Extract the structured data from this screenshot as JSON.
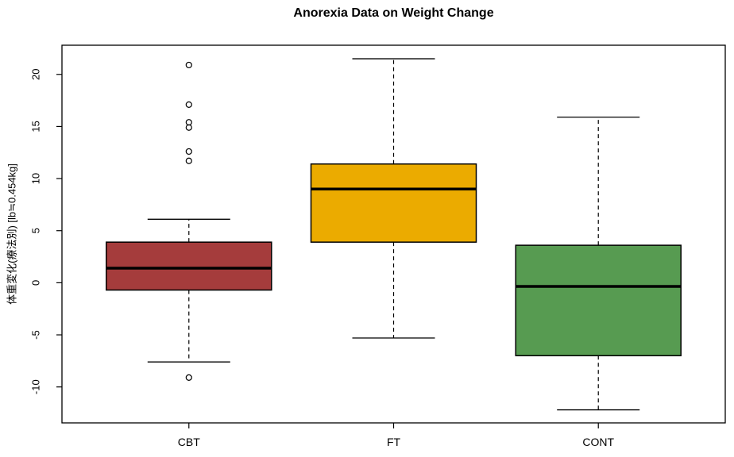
{
  "title": "Anorexia Data on Weight Change",
  "y_axis": {
    "label": "体重変化(療法別) [lb≒0.454kg]",
    "ticks": [
      -10,
      -5,
      0,
      5,
      10,
      15,
      20
    ],
    "range": [
      -13.45,
      22.8
    ]
  },
  "x_axis": {
    "categories": [
      "CBT",
      "FT",
      "CONT"
    ]
  },
  "chart_data": {
    "type": "boxplot",
    "title": "Anorexia Data on Weight Change",
    "ylabel": "体重変化(療法別) [lb≒0.454kg]",
    "ylim": [
      -13.45,
      22.8
    ],
    "y_ticks": [
      -10,
      -5,
      0,
      5,
      10,
      15,
      20
    ],
    "grid": false,
    "categories": [
      "CBT",
      "FT",
      "CONT"
    ],
    "series": [
      {
        "name": "CBT",
        "fill": "#A53C3C",
        "whisker_low": -7.6,
        "q1": -0.7,
        "median": 1.4,
        "q3": 3.9,
        "whisker_high": 6.1,
        "outliers": [
          20.9,
          17.1,
          15.4,
          14.9,
          12.6,
          11.7,
          -9.1
        ]
      },
      {
        "name": "FT",
        "fill": "#EBAB00",
        "whisker_low": -5.3,
        "q1": 3.9,
        "median": 9.0,
        "q3": 11.4,
        "whisker_high": 21.5,
        "outliers": []
      },
      {
        "name": "CONT",
        "fill": "#579B51",
        "whisker_low": -12.2,
        "q1": -7.0,
        "median": -0.35,
        "q3": 3.6,
        "whisker_high": 15.9,
        "outliers": []
      }
    ],
    "colors": {
      "box_border": "#000000",
      "median": "#000000",
      "whisker": "#000000",
      "background": "#ffffff"
    }
  }
}
